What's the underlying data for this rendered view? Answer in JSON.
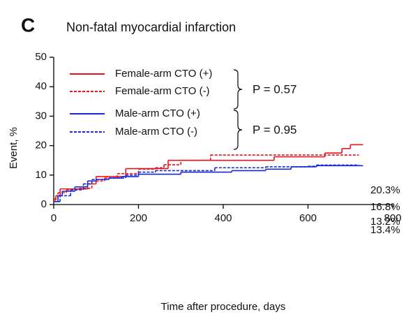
{
  "chart_data": {
    "type": "line",
    "step": "post",
    "panel_label": "C",
    "title": "Non-fatal myocardial infarction",
    "x_label": "Time after procedure, days",
    "y_label": "Event, %",
    "xlim": [
      0,
      800
    ],
    "xticks": [
      0,
      200,
      400,
      600,
      800
    ],
    "ylim": [
      0,
      50
    ],
    "yticks": [
      0,
      10,
      20,
      30,
      40,
      50
    ],
    "series": [
      {
        "name": "Female-arm CTO (+)",
        "color": "#e8141b",
        "dash": false,
        "x": [
          0,
          5,
          15,
          60,
          80,
          100,
          130,
          170,
          210,
          270,
          380,
          520,
          640,
          680,
          700,
          730
        ],
        "values": [
          1.5,
          3,
          5.3,
          5.3,
          7,
          9.5,
          9.5,
          12.2,
          12.2,
          15,
          15,
          16.2,
          17.5,
          19,
          20.3,
          20.3
        ],
        "end_label": "20.3%"
      },
      {
        "name": "Female-arm CTO (-)",
        "color": "#e8141b",
        "dash": true,
        "x": [
          0,
          10,
          30,
          60,
          90,
          120,
          150,
          200,
          240,
          260,
          300,
          370,
          720
        ],
        "values": [
          2,
          4,
          5,
          5.5,
          8,
          9,
          10.5,
          12,
          12.5,
          13.5,
          15,
          16.8,
          16.8
        ],
        "end_label": "16.8%"
      },
      {
        "name": "Male-arm CTO (+)",
        "color": "#1428d8",
        "dash": false,
        "x": [
          0,
          10,
          20,
          50,
          80,
          100,
          130,
          160,
          200,
          300,
          420,
          500,
          560,
          620,
          730
        ],
        "values": [
          1,
          3,
          4.5,
          6,
          8,
          8.5,
          9,
          9.5,
          10.3,
          11,
          11.5,
          12,
          12.8,
          13.2,
          13.2
        ],
        "end_label": "13.2%"
      },
      {
        "name": "Male-arm CTO (-)",
        "color": "#1428d8",
        "dash": true,
        "x": [
          0,
          15,
          40,
          70,
          90,
          130,
          170,
          200,
          240,
          380,
          500,
          600,
          620,
          720
        ],
        "values": [
          1,
          3,
          5,
          7,
          8.5,
          9,
          10,
          11,
          11.5,
          12.5,
          12.8,
          13,
          13.4,
          13.4
        ],
        "end_label": "13.4%"
      }
    ],
    "p_values": [
      "P = 0.57",
      "P = 0.95"
    ]
  }
}
